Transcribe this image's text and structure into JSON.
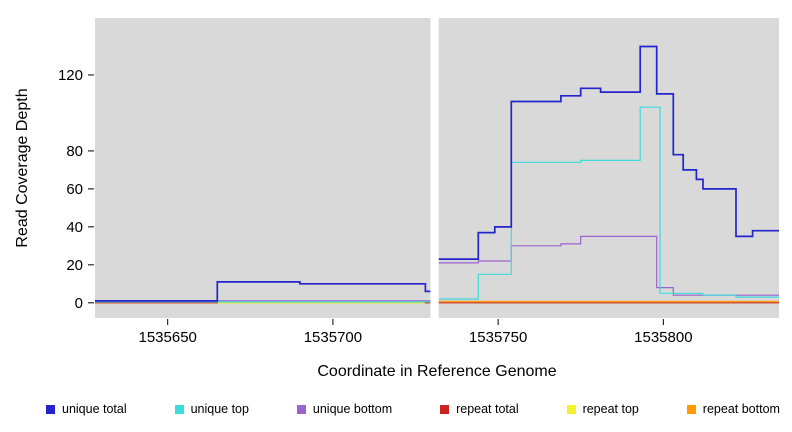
{
  "chart_data": {
    "type": "line",
    "line_style": "step-after",
    "title": "",
    "xlabel": "Coordinate in Reference Genome",
    "ylabel": "Read Coverage Depth",
    "xlim": [
      1535628,
      1535835
    ],
    "ylim": [
      0,
      150
    ],
    "panel_ylim": [
      -8,
      150
    ],
    "xticks": [
      1535650,
      1535700,
      1535750,
      1535800
    ],
    "yticks": [
      0,
      20,
      40,
      60,
      80,
      120
    ],
    "grid": false,
    "panel_color": "#d9d9d9",
    "gap_x": [
      1535729.5,
      1535732
    ],
    "legend_position": "bottom",
    "series": [
      {
        "name": "unique total",
        "color": "#2424cc",
        "width": 1.7,
        "steps": [
          [
            1535628,
            1
          ],
          [
            1535665,
            11
          ],
          [
            1535690,
            10
          ],
          [
            1535728,
            6
          ],
          [
            1535731,
            23
          ],
          [
            1535744,
            37
          ],
          [
            1535749,
            40
          ],
          [
            1535754,
            106
          ],
          [
            1535769,
            109
          ],
          [
            1535775,
            113
          ],
          [
            1535781,
            111
          ],
          [
            1535793,
            135
          ],
          [
            1535798,
            110
          ],
          [
            1535803,
            78
          ],
          [
            1535806,
            70
          ],
          [
            1535810,
            65
          ],
          [
            1535812,
            60
          ],
          [
            1535822,
            35
          ],
          [
            1535827,
            38
          ]
        ]
      },
      {
        "name": "unique top",
        "color": "#3cdcdc",
        "width": 1.2,
        "steps": [
          [
            1535628,
            0.5
          ],
          [
            1535731,
            2
          ],
          [
            1535744,
            15
          ],
          [
            1535754,
            74
          ],
          [
            1535775,
            75
          ],
          [
            1535793,
            103
          ],
          [
            1535799,
            5
          ],
          [
            1535812,
            4
          ],
          [
            1535822,
            3
          ]
        ]
      },
      {
        "name": "unique bottom",
        "color": "#9a63cf",
        "width": 1.2,
        "steps": [
          [
            1535628,
            1
          ],
          [
            1535731,
            21
          ],
          [
            1535744,
            22
          ],
          [
            1535754,
            30
          ],
          [
            1535769,
            31
          ],
          [
            1535775,
            35
          ],
          [
            1535798,
            8
          ],
          [
            1535803,
            4
          ]
        ]
      },
      {
        "name": "repeat total",
        "color": "#cc2222",
        "width": 1.2,
        "steps": [
          [
            1535628,
            0
          ],
          [
            1535665,
            0.6
          ],
          [
            1535728,
            0
          ],
          [
            1535731,
            0
          ]
        ]
      },
      {
        "name": "repeat top",
        "color": "#f2f22e",
        "width": 1.2,
        "steps": [
          [
            1535628,
            0
          ]
        ]
      },
      {
        "name": "repeat bottom",
        "color": "#ff9a00",
        "width": 1.2,
        "steps": [
          [
            1535628,
            0
          ],
          [
            1535731,
            0.8
          ]
        ]
      }
    ]
  }
}
